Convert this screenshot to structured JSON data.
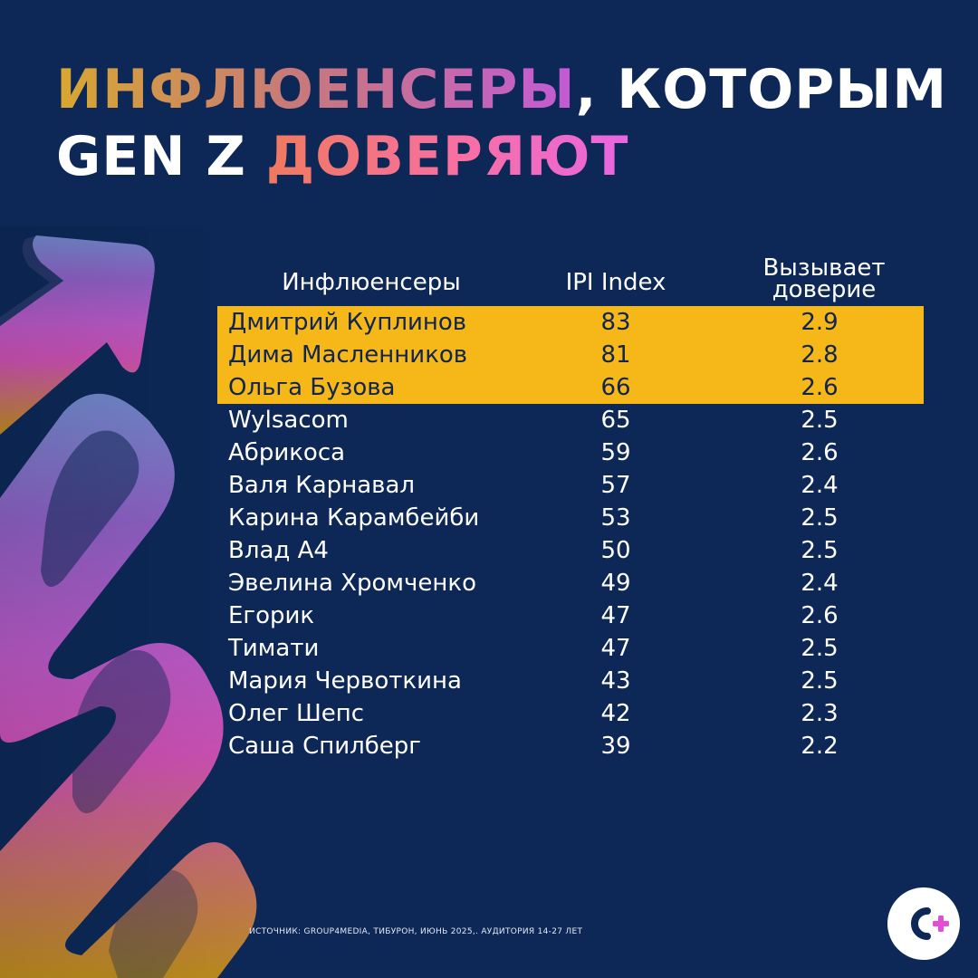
{
  "title": {
    "line1_part1": "ИНФЛЮЕНСЕРЫ",
    "line1_part2": ", КОТОРЫМ",
    "line2_part1": "GEN Z ",
    "line2_part2": "ДОВЕРЯЮТ"
  },
  "table": {
    "headers": {
      "name": "Инфлюенсеры",
      "ipi": "IPI Index",
      "trust_line1": "Вызывает",
      "trust_line2": "доверие"
    },
    "highlight_color": "#f6b719",
    "rows": [
      {
        "name": "Дмитрий Куплинов",
        "ipi": "83",
        "trust": "2.9"
      },
      {
        "name": "Дима Масленников",
        "ipi": "81",
        "trust": "2.8"
      },
      {
        "name": "Ольга Бузова",
        "ipi": "66",
        "trust": "2.6"
      },
      {
        "name": "Wylsacom",
        "ipi": "65",
        "trust": "2.5"
      },
      {
        "name": "Абрикоса",
        "ipi": "59",
        "trust": "2.6"
      },
      {
        "name": "Валя Карнавал",
        "ipi": "57",
        "trust": "2.4"
      },
      {
        "name": "Карина Карамбейби",
        "ipi": "53",
        "trust": "2.5"
      },
      {
        "name": "Влад А4",
        "ipi": "50",
        "trust": "2.5"
      },
      {
        "name": "Эвелина Хромченко",
        "ipi": "49",
        "trust": "2.4"
      },
      {
        "name": "Егорик",
        "ipi": "47",
        "trust": "2.6"
      },
      {
        "name": "Тимати",
        "ipi": "47",
        "trust": "2.5"
      },
      {
        "name": "Мария Червоткина",
        "ipi": "43",
        "trust": "2.5"
      },
      {
        "name": "Олег Шепс",
        "ipi": "42",
        "trust": "2.3"
      },
      {
        "name": "Саша Спилберг",
        "ipi": "39",
        "trust": "2.2"
      }
    ]
  },
  "source": "ИСТОЧНИК: GROUP4MEDIA, ТИБУРОН, ИЮНЬ 2025,. АУДИТОРИЯ 14-27 ЛЕТ",
  "logo": {
    "icon": "c-plus-logo-icon",
    "letter": "C",
    "plus": "+",
    "plus_color": "#e24fd6",
    "letter_color": "#0d2857"
  },
  "colors": {
    "background": "#0d2857",
    "highlight_text": "#10254f"
  }
}
